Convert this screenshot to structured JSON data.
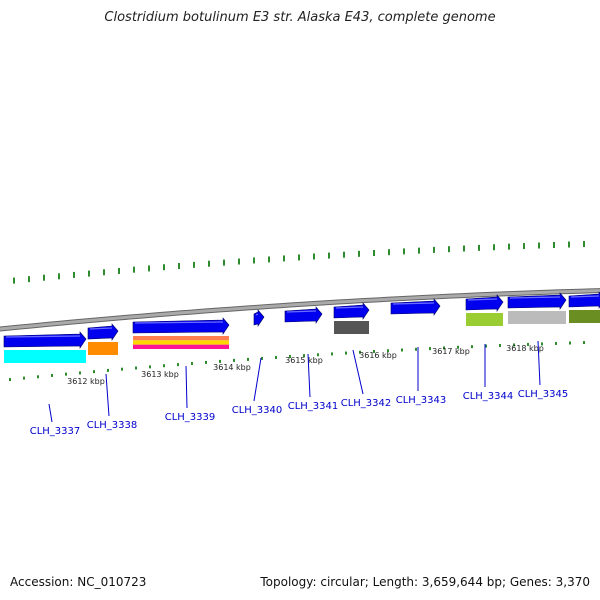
{
  "title": "Clostridium botulinum E3 str. Alaska E43, complete genome",
  "footer": {
    "accession": "Accession: NC_010723",
    "summary": "Topology: circular; Length: 3,659,644 bp; Genes: 3,370"
  },
  "kbp_labels": [
    "3612 kbp",
    "3613 kbp",
    "3614 kbp",
    "3615 kbp",
    "3616 kbp",
    "3617 kbp",
    "3618 kbp"
  ],
  "genes": [
    {
      "id": "CLH_3337",
      "color": "#0000ee",
      "cog": [
        "#00ffff"
      ]
    },
    {
      "id": "CLH_3338",
      "color": "#0000ee",
      "cog": [
        "#ff8c00"
      ]
    },
    {
      "id": "CLH_3339",
      "color": "#0000ee",
      "cog": [
        "#ff7f50",
        "#ffd700",
        "#ff1493"
      ]
    },
    {
      "id": "CLH_3340",
      "color": "#0000ee",
      "cog": []
    },
    {
      "id": "CLH_3341",
      "color": "#0000ee",
      "cog": []
    },
    {
      "id": "CLH_3342",
      "color": "#0000ee",
      "cog": [
        "#555555"
      ]
    },
    {
      "id": "CLH_3343",
      "color": "#0000ee",
      "cog": []
    },
    {
      "id": "CLH_3344",
      "color": "#0000ee",
      "cog": [
        "#9acd32"
      ]
    },
    {
      "id": "CLH_3345",
      "color": "#0000ee",
      "cog": [
        "#bbbbbb"
      ]
    },
    {
      "id": "",
      "color": "#0000ee",
      "cog": [
        "#6b8e23"
      ]
    }
  ],
  "colors": {
    "backbone": "#888888",
    "gc_ticks": "#2e8b2e",
    "gene_label": "#0000cc",
    "leader": "#0000cc"
  }
}
